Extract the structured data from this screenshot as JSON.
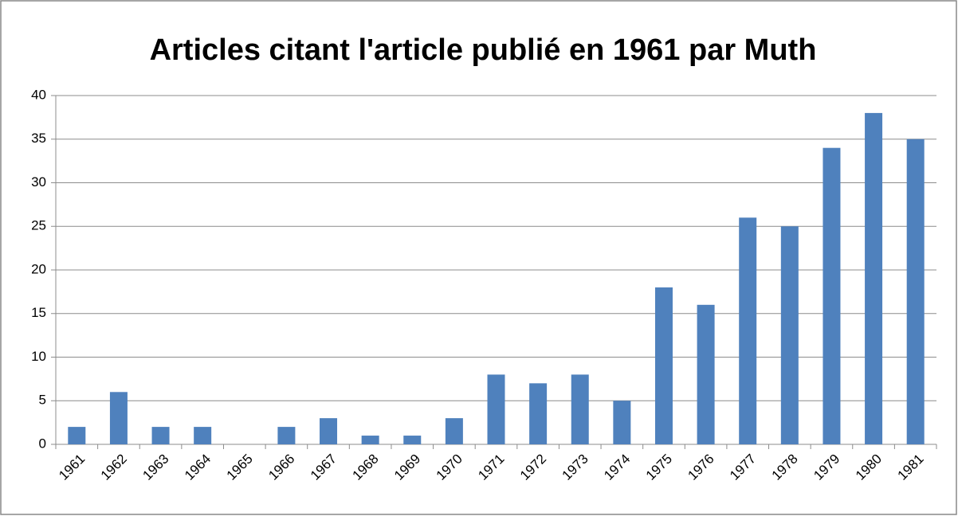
{
  "chart_data": {
    "type": "bar",
    "title": "Articles citant l'article publié en 1961 par Muth",
    "categories": [
      "1961",
      "1962",
      "1963",
      "1964",
      "1965",
      "1966",
      "1967",
      "1968",
      "1969",
      "1970",
      "1971",
      "1972",
      "1973",
      "1974",
      "1975",
      "1976",
      "1977",
      "1978",
      "1979",
      "1980",
      "1981"
    ],
    "values": [
      2,
      6,
      2,
      2,
      0,
      2,
      3,
      1,
      1,
      3,
      8,
      7,
      8,
      5,
      18,
      16,
      26,
      25,
      34,
      38,
      35
    ],
    "color": "#4f81bd",
    "ylim": [
      0,
      40
    ],
    "yticks": [
      0,
      5,
      10,
      15,
      20,
      25,
      30,
      35,
      40
    ],
    "grid": true
  }
}
